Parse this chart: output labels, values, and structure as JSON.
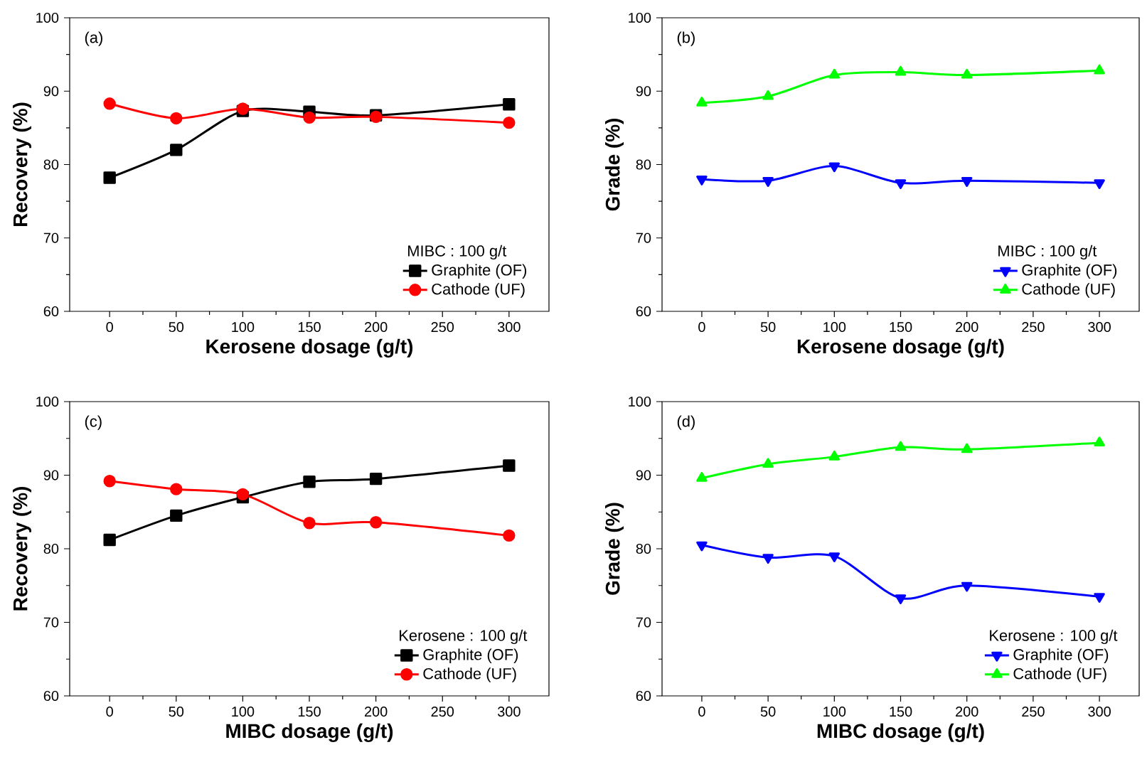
{
  "chart_data": [
    {
      "type": "line",
      "title": "(a)",
      "xlabel": "Kerosene dosage (g/t)",
      "ylabel": "Recovery (%)",
      "legend_title": "MIBC : 100 g/t",
      "legend": "bottom right",
      "x": [
        0,
        50,
        100,
        150,
        200,
        300
      ],
      "xlim": [
        -30,
        330
      ],
      "ylim": [
        60,
        100
      ],
      "xticks": [
        0,
        50,
        100,
        150,
        200,
        250,
        300
      ],
      "yticks": [
        60,
        70,
        80,
        90,
        100
      ],
      "series": [
        {
          "name": "Graphite (OF)",
          "color": "#000000",
          "marker": "square",
          "values": [
            78.2,
            82.0,
            87.3,
            87.2,
            86.7,
            88.2
          ]
        },
        {
          "name": "Cathode (UF)",
          "color": "#ff0000",
          "marker": "circle",
          "values": [
            88.3,
            86.3,
            87.6,
            86.4,
            86.5,
            85.7
          ]
        }
      ]
    },
    {
      "type": "line",
      "title": "(b)",
      "xlabel": "Kerosene dosage (g/t)",
      "ylabel": "Grade (%)",
      "legend_title": "MIBC : 100 g/t",
      "legend": "bottom right",
      "x": [
        0,
        50,
        100,
        150,
        200,
        300
      ],
      "xlim": [
        -30,
        330
      ],
      "ylim": [
        60,
        100
      ],
      "xticks": [
        0,
        50,
        100,
        150,
        200,
        250,
        300
      ],
      "yticks": [
        60,
        70,
        80,
        90,
        100
      ],
      "series": [
        {
          "name": "Graphite (OF)",
          "color": "#0000ff",
          "marker": "triangle-down",
          "values": [
            78.0,
            77.8,
            79.8,
            77.5,
            77.8,
            77.5
          ]
        },
        {
          "name": "Cathode (UF)",
          "color": "#00ff00",
          "marker": "triangle",
          "values": [
            88.4,
            89.3,
            92.2,
            92.6,
            92.2,
            92.8
          ]
        }
      ]
    },
    {
      "type": "line",
      "title": "(c)",
      "xlabel": "MIBC dosage (g/t)",
      "ylabel": "Recovery (%)",
      "legend_title": "Kerosene : 100 g/t",
      "legend": "bottom right",
      "x": [
        0,
        50,
        100,
        150,
        200,
        300
      ],
      "xlim": [
        -30,
        330
      ],
      "ylim": [
        60,
        100
      ],
      "xticks": [
        0,
        50,
        100,
        150,
        200,
        250,
        300
      ],
      "yticks": [
        60,
        70,
        80,
        90,
        100
      ],
      "series": [
        {
          "name": "Graphite (OF)",
          "color": "#000000",
          "marker": "square",
          "values": [
            81.2,
            84.5,
            87.0,
            89.1,
            89.5,
            91.3
          ]
        },
        {
          "name": "Cathode (UF)",
          "color": "#ff0000",
          "marker": "circle",
          "values": [
            89.2,
            88.1,
            87.4,
            83.5,
            83.6,
            81.8
          ]
        }
      ]
    },
    {
      "type": "line",
      "title": "(d)",
      "xlabel": "MIBC dosage (g/t)",
      "ylabel": "Grade (%)",
      "legend_title": "Kerosene : 100 g/t",
      "legend": "bottom right",
      "x": [
        0,
        50,
        100,
        150,
        200,
        300
      ],
      "xlim": [
        -30,
        330
      ],
      "ylim": [
        60,
        100
      ],
      "xticks": [
        0,
        50,
        100,
        150,
        200,
        250,
        300
      ],
      "yticks": [
        60,
        70,
        80,
        90,
        100
      ],
      "series": [
        {
          "name": "Graphite (OF)",
          "color": "#0000ff",
          "marker": "triangle-down",
          "values": [
            80.5,
            78.8,
            79.0,
            73.3,
            75.0,
            73.5
          ]
        },
        {
          "name": "Cathode (UF)",
          "color": "#00ff00",
          "marker": "triangle",
          "values": [
            89.6,
            91.5,
            92.5,
            93.8,
            93.5,
            94.4
          ]
        }
      ]
    }
  ]
}
